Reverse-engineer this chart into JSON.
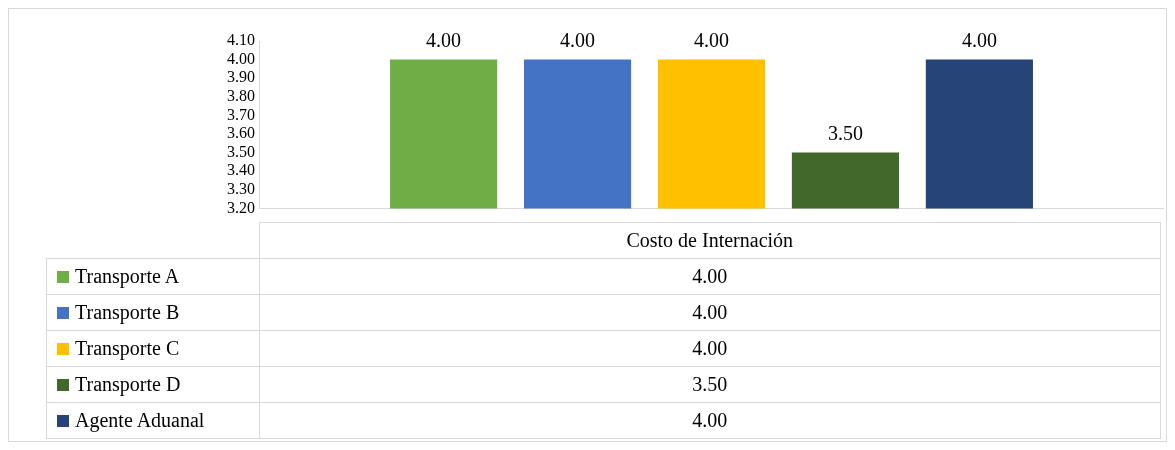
{
  "chart_data": {
    "type": "bar",
    "categories": [
      "Costo de Internación"
    ],
    "series": [
      {
        "name": "Transporte A",
        "color": "#70ad47",
        "values": [
          4.0
        ],
        "value_labels": [
          "4.00"
        ]
      },
      {
        "name": "Transporte B",
        "color": "#4472c4",
        "values": [
          4.0
        ],
        "value_labels": [
          "4.00"
        ]
      },
      {
        "name": "Transporte C",
        "color": "#ffc000",
        "values": [
          4.0
        ],
        "value_labels": [
          "4.00"
        ]
      },
      {
        "name": "Transporte D",
        "color": "#43682b",
        "values": [
          3.5
        ],
        "value_labels": [
          "3.50"
        ]
      },
      {
        "name": "Agente Aduanal",
        "color": "#264478",
        "values": [
          4.0
        ],
        "value_labels": [
          "4.00"
        ]
      }
    ],
    "ylim": [
      3.2,
      4.1
    ],
    "yticks": [
      {
        "value": 3.2,
        "label": "3.20"
      },
      {
        "value": 3.3,
        "label": "3.30"
      },
      {
        "value": 3.4,
        "label": "3.40"
      },
      {
        "value": 3.5,
        "label": "3.50"
      },
      {
        "value": 3.6,
        "label": "3.60"
      },
      {
        "value": 3.7,
        "label": "3.70"
      },
      {
        "value": 3.8,
        "label": "3.80"
      },
      {
        "value": 3.9,
        "label": "3.90"
      },
      {
        "value": 4.0,
        "label": "4.00"
      },
      {
        "value": 4.1,
        "label": "4.10"
      }
    ],
    "grid": false,
    "legend": "bottom"
  }
}
